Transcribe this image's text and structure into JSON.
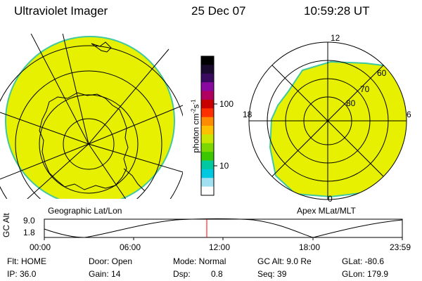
{
  "header": {
    "instrument": "Ultraviolet Imager",
    "date": "25 Dec 07",
    "time": "10:59:28 UT"
  },
  "maps": {
    "left_label": "Geographic Lat/Lon",
    "right_label": "Apex MLat/MLT",
    "mlat_rings": [
      "60",
      "70",
      "80"
    ],
    "mlt_marks": {
      "top": "12",
      "left": "18",
      "right": "6",
      "bottom": "0"
    }
  },
  "colorbar": {
    "label": "photon cm",
    "label_exp": "-2",
    "label_s": "s",
    "label_exp2": "-1",
    "ticks": [
      "100",
      "10"
    ],
    "colors": [
      "#000000",
      "#1a0a2e",
      "#3a0a5e",
      "#8a0aa0",
      "#b00060",
      "#c80000",
      "#ff3000",
      "#ff8c00",
      "#ffc000",
      "#c8e600",
      "#7cd800",
      "#3cc800",
      "#00c8a0",
      "#00c8e0",
      "#a0e0f0",
      "#ffffff"
    ]
  },
  "orbit": {
    "ylabel": "GC Alt",
    "y_top": "9.0",
    "y_bottom": "1.8",
    "x_ticks": [
      "00:00",
      "06:00",
      "12:00",
      "18:00",
      "23:59"
    ]
  },
  "info": {
    "flt": "Flt: HOME",
    "ip": "IP: 36.0",
    "door": "Door: Open",
    "gain": "Gain: 14",
    "mode": "Mode: Normal",
    "dsp_label": "Dsp:",
    "dsp_value": "0.8",
    "gc_alt": "GC Alt: 9.0 Re",
    "seq": "Seq: 39",
    "glat": "GLat: -80.6",
    "glon": "GLon: 179.9"
  },
  "colors": {
    "fill": "#e6f000",
    "edge": "#40c8a0",
    "current_time": "#ff0000"
  }
}
